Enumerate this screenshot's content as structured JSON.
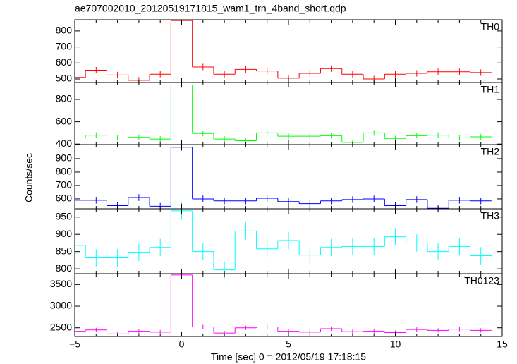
{
  "title": "ae707002010_20120519171815_wam1_trn_4band_short.qdp",
  "x_label": "Time [sec] 0 = 2012/05/19 17:18:15",
  "y_label": "Counts/sec",
  "xlim": [
    -5,
    15
  ],
  "xticks": [
    {
      "value": -5,
      "label": "−5"
    },
    0,
    5,
    10,
    15
  ],
  "x": [
    -5,
    -4,
    -3,
    -2,
    -1,
    0,
    1,
    2,
    3,
    4,
    5,
    6,
    7,
    8,
    9,
    10,
    11,
    12,
    13,
    14
  ],
  "chart_data": [
    {
      "type": "step",
      "label": "TH0",
      "color": "#ff0000",
      "ylim": [
        478,
        870
      ],
      "yticks": [
        500,
        600,
        700,
        800
      ],
      "values": [
        510,
        555,
        525,
        492,
        530,
        865,
        575,
        530,
        560,
        550,
        505,
        535,
        565,
        530,
        500,
        530,
        535,
        545,
        545,
        540
      ],
      "errors": [
        20,
        20,
        20,
        20,
        20,
        20,
        20,
        20,
        20,
        20,
        20,
        20,
        20,
        20,
        20,
        20,
        20,
        20,
        20,
        20
      ]
    },
    {
      "type": "step",
      "label": "TH1",
      "color": "#00ff00",
      "ylim": [
        395,
        952
      ],
      "yticks": [
        400,
        600,
        800
      ],
      "values": [
        455,
        480,
        455,
        460,
        445,
        930,
        495,
        445,
        430,
        500,
        470,
        470,
        475,
        415,
        500,
        450,
        475,
        480,
        455,
        465
      ],
      "errors": [
        25,
        25,
        25,
        25,
        25,
        25,
        25,
        25,
        25,
        25,
        25,
        25,
        25,
        25,
        25,
        25,
        25,
        25,
        25,
        25
      ]
    },
    {
      "type": "step",
      "label": "TH2",
      "color": "#0000ff",
      "ylim": [
        526,
        1005
      ],
      "yticks": [
        600,
        700,
        800,
        900
      ],
      "values": [
        590,
        590,
        550,
        610,
        545,
        985,
        600,
        585,
        585,
        605,
        580,
        565,
        585,
        595,
        600,
        550,
        595,
        530,
        590,
        585
      ],
      "errors": [
        25,
        25,
        25,
        25,
        25,
        25,
        25,
        25,
        25,
        25,
        25,
        25,
        25,
        25,
        25,
        25,
        25,
        25,
        25,
        25
      ]
    },
    {
      "type": "step",
      "label": "TH3",
      "color": "#00ffff",
      "ylim": [
        786,
        974
      ],
      "yticks": [
        800,
        850,
        900,
        950
      ],
      "values": [
        868,
        832,
        832,
        848,
        862,
        968,
        850,
        797,
        910,
        858,
        882,
        840,
        862,
        865,
        865,
        893,
        875,
        850,
        865,
        838
      ],
      "errors": [
        25,
        25,
        25,
        25,
        25,
        25,
        25,
        25,
        25,
        25,
        25,
        25,
        25,
        25,
        25,
        25,
        25,
        25,
        25,
        25
      ]
    },
    {
      "type": "step",
      "label": "TH0123",
      "color": "#ff00ff",
      "ylim": [
        2300,
        3750
      ],
      "yticks": [
        2500,
        3000,
        3500
      ],
      "values": [
        2420,
        2450,
        2360,
        2420,
        2400,
        3720,
        2520,
        2380,
        2500,
        2520,
        2420,
        2400,
        2480,
        2410,
        2420,
        2390,
        2460,
        2440,
        2470,
        2440
      ],
      "errors": [
        50,
        50,
        50,
        50,
        50,
        50,
        50,
        50,
        50,
        50,
        50,
        50,
        50,
        50,
        50,
        50,
        50,
        50,
        50,
        50
      ]
    }
  ]
}
